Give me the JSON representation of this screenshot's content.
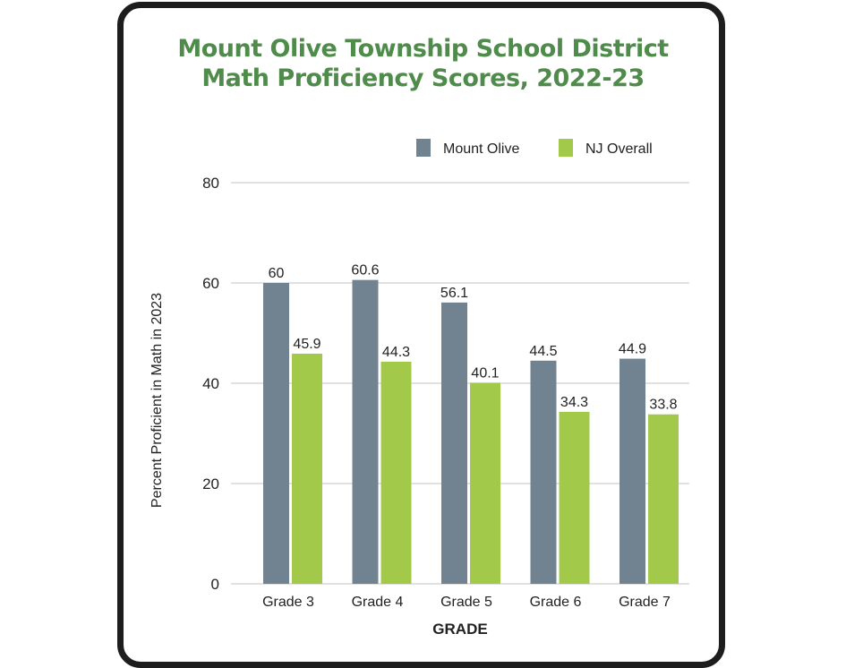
{
  "chart_data": {
    "type": "bar",
    "title": [
      "Mount Olive Township School District",
      "Math Proficiency Scores, 2022-23"
    ],
    "xlabel": "GRADE",
    "ylabel": "Percent Proficient in Math in 2023",
    "categories": [
      "Grade 3",
      "Grade 4",
      "Grade 5",
      "Grade 6",
      "Grade 7"
    ],
    "series": [
      {
        "name": "Mount Olive",
        "color": "#718290",
        "values": [
          60,
          60.6,
          56.1,
          44.5,
          44.9
        ]
      },
      {
        "name": "NJ Overall",
        "color": "#a2c94a",
        "values": [
          45.9,
          44.3,
          40.1,
          34.3,
          33.8
        ]
      }
    ],
    "ylim": [
      0,
      80
    ],
    "yticks": [
      0,
      20,
      40,
      60,
      80
    ],
    "grid": true,
    "legend": "top-right",
    "title_color": "#4f8b4a"
  }
}
